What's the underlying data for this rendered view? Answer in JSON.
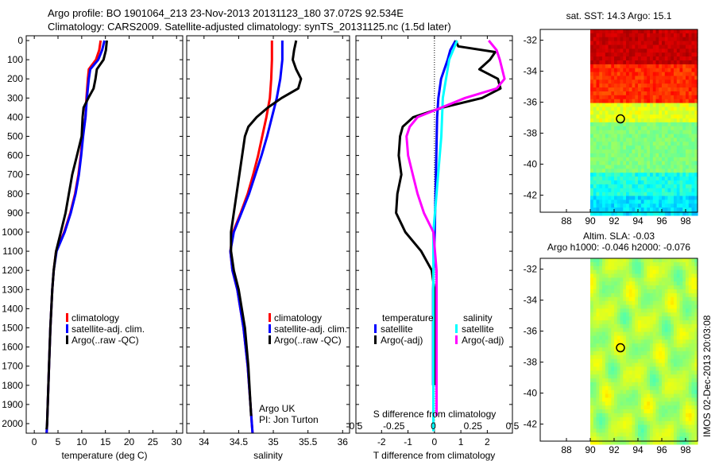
{
  "title": {
    "line1": "Argo profile: BO 1901064_213 23-Nov-2013 20131123_180 37.072S 92.534E",
    "line2": "Climatology: CARS2009. Satellite-adjusted climatology: synTS_20131125.nc (1.5d later)"
  },
  "side_label": "IMOS 02-Dec-2013 20:03:08",
  "colors": {
    "clim": "#ff0000",
    "sat": "#0000ff",
    "argo": "#000000",
    "sat_s": "#00ffff",
    "argo_s": "#ff00ff"
  },
  "chart_data": [
    {
      "type": "line",
      "id": "temp",
      "xlabel": "temperature (deg C)",
      "ylabel": "",
      "xlim": [
        -1.7,
        31.3
      ],
      "ylim": [
        2050,
        -25
      ],
      "xticks": [
        0,
        5,
        10,
        15,
        20,
        25,
        30
      ],
      "yticks": [
        0,
        100,
        200,
        300,
        400,
        500,
        600,
        700,
        800,
        900,
        1000,
        1100,
        1200,
        1300,
        1400,
        1500,
        1600,
        1700,
        1800,
        1900,
        2000
      ],
      "legend": [
        "climatology",
        "satellite-adj. clim.",
        "Argo(..raw -QC)"
      ],
      "series": [
        {
          "name": "climatology",
          "color": "#ff0000",
          "depth": [
            0,
            50,
            100,
            150,
            200,
            300,
            400,
            500,
            600,
            700,
            800,
            900,
            1000,
            1100,
            1200,
            1300,
            1500,
            1700,
            2000,
            2050
          ],
          "values": [
            14,
            13.7,
            13,
            11.5,
            11.3,
            11,
            10.8,
            10.2,
            9.8,
            9.3,
            8.6,
            7.6,
            6.3,
            4.6,
            4.1,
            3.8,
            3.4,
            3.1,
            2.7,
            2.6
          ]
        },
        {
          "name": "satellite-adj. clim.",
          "color": "#0000ff",
          "depth": [
            0,
            50,
            100,
            150,
            200,
            300,
            400,
            500,
            600,
            700,
            800,
            900,
            1000,
            1100,
            1200,
            1300,
            1500,
            1700,
            2000,
            2050
          ],
          "values": [
            14.8,
            14.3,
            13.5,
            11.8,
            11.5,
            11.1,
            10.8,
            10.3,
            9.9,
            9.4,
            8.7,
            7.7,
            6.4,
            4.7,
            4.1,
            3.8,
            3.4,
            3.1,
            2.7,
            2.6
          ]
        },
        {
          "name": "Argo(..raw -QC)",
          "color": "#000000",
          "depth": [
            0,
            50,
            100,
            150,
            200,
            250,
            300,
            350,
            400,
            500,
            600,
            700,
            800,
            900,
            1000,
            1100,
            1200,
            1300,
            1500,
            1700,
            2000,
            2030
          ],
          "values": [
            15.3,
            15.1,
            14.6,
            13.2,
            12.9,
            12.5,
            11.4,
            10.4,
            10.2,
            10,
            9,
            8,
            7.3,
            6.6,
            5.6,
            4.6,
            4.1,
            3.8,
            3.4,
            3.1,
            2.7,
            2.6
          ]
        }
      ]
    },
    {
      "type": "line",
      "id": "sal",
      "xlabel": "salinity",
      "ylabel": "",
      "xlim": [
        33.75,
        36.1
      ],
      "ylim": [
        2050,
        -25
      ],
      "xticks": [
        34,
        34.5,
        35,
        35.5,
        36
      ],
      "legend": [
        "climatology",
        "satellite-adj. clim.",
        "Argo(..raw -QC)"
      ],
      "note": [
        "Argo UK",
        "PI: Jon Turton"
      ],
      "series": [
        {
          "name": "climatology",
          "color": "#ff0000",
          "depth": [
            0,
            100,
            200,
            300,
            400,
            500,
            600,
            700,
            800,
            900,
            1000,
            1100,
            1200,
            1300,
            1500,
            1700,
            2000,
            2050
          ],
          "values": [
            34.98,
            34.98,
            34.97,
            34.95,
            34.9,
            34.84,
            34.78,
            34.71,
            34.63,
            34.53,
            34.42,
            34.38,
            34.41,
            34.48,
            34.57,
            34.63,
            34.69,
            34.7
          ]
        },
        {
          "name": "satellite-adj. clim.",
          "color": "#0000ff",
          "depth": [
            0,
            100,
            200,
            300,
            400,
            500,
            600,
            700,
            800,
            900,
            1000,
            1100,
            1200,
            1300,
            1500,
            1700,
            2000,
            2050
          ],
          "values": [
            35.13,
            35.13,
            35.1,
            35.05,
            34.98,
            34.91,
            34.83,
            34.74,
            34.65,
            34.54,
            34.43,
            34.38,
            34.41,
            34.48,
            34.57,
            34.63,
            34.69,
            34.7
          ]
        },
        {
          "name": "Argo(..raw -QC)",
          "color": "#000000",
          "depth": [
            0,
            50,
            100,
            150,
            200,
            250,
            300,
            350,
            400,
            450,
            500,
            600,
            700,
            800,
            900,
            1000,
            1100,
            1200,
            1300,
            1500,
            1700,
            1960
          ],
          "values": [
            35.33,
            35.3,
            35.28,
            35.33,
            35.4,
            35.36,
            35.12,
            34.92,
            34.76,
            34.64,
            34.59,
            34.55,
            34.51,
            34.47,
            34.43,
            34.39,
            34.39,
            34.43,
            34.5,
            34.59,
            34.64,
            34.68
          ]
        }
      ]
    },
    {
      "type": "line",
      "id": "diff",
      "xlabel": "T difference from climatology",
      "x2label": "S difference from climatology",
      "xlim": [
        -2.97,
        2.95
      ],
      "x2lim": [
        -0.49,
        0.5
      ],
      "ylim": [
        2050,
        -25
      ],
      "xticks": [
        -2,
        -1,
        0,
        1,
        2
      ],
      "x2ticks": [
        -0.5,
        -0.25,
        0,
        0.25,
        0.5
      ],
      "x2ticklabels": [
        "-0.5",
        "-0.25",
        "0",
        "0.25",
        "0.5"
      ],
      "legend_t": {
        "title": "temperature",
        "items": [
          "satellite",
          "Argo(-adj)"
        ]
      },
      "legend_s": {
        "title": "salinity",
        "items": [
          "satellite",
          "Argo(-adj)"
        ]
      },
      "series": [
        {
          "name": "T satellite",
          "axis": "T",
          "color": "#0000ff",
          "depth": [
            0,
            50,
            100,
            200,
            300,
            400,
            600,
            800,
            1000,
            1200,
            1300,
            1500,
            1700,
            1800
          ],
          "values": [
            0.8,
            0.6,
            0.5,
            0.25,
            0.15,
            0.1,
            0.07,
            0.04,
            0.01,
            -0.03,
            -0.05,
            -0.05,
            -0.05,
            -0.05
          ]
        },
        {
          "name": "T Argo(-adj)",
          "axis": "T",
          "color": "#000000",
          "depth": [
            0,
            30,
            60,
            100,
            150,
            200,
            250,
            300,
            350,
            400,
            450,
            500,
            600,
            700,
            800,
            900,
            1000,
            1100,
            1200,
            1300,
            1500,
            1800
          ],
          "values": [
            0.8,
            0.9,
            2.3,
            2.1,
            1.7,
            2.4,
            2.5,
            1.8,
            0.3,
            -0.8,
            -1.2,
            -1.3,
            -1.35,
            -1.25,
            -1.4,
            -1.45,
            -1.1,
            -0.5,
            -0.1,
            0,
            0,
            0
          ]
        },
        {
          "name": "S satellite",
          "axis": "S",
          "color": "#00ffff",
          "depth": [
            0,
            100,
            200,
            300,
            500,
            800,
            1000,
            1500,
            2000,
            2040
          ],
          "values": [
            0.15,
            0.1,
            0.08,
            0.06,
            0.05,
            0.02,
            0,
            0,
            0,
            0
          ]
        },
        {
          "name": "S Argo(-adj)",
          "axis": "S",
          "color": "#ff00ff",
          "depth": [
            0,
            50,
            100,
            200,
            250,
            300,
            350,
            400,
            450,
            500,
            600,
            700,
            800,
            900,
            1000,
            1200,
            1500,
            1960
          ],
          "values": [
            0.35,
            0.4,
            0.42,
            0.45,
            0.4,
            0.2,
            0.05,
            -0.1,
            -0.15,
            -0.17,
            -0.16,
            -0.13,
            -0.1,
            -0.06,
            0,
            0.02,
            0.02,
            0.02
          ]
        }
      ]
    },
    {
      "type": "heatmap",
      "id": "sst",
      "title": "sat. SST: 14.3 Argo: 15.1",
      "xlim": [
        85.8,
        99
      ],
      "ylim": [
        -43.1,
        -31.3
      ],
      "xticks": [
        88,
        90,
        92,
        94,
        96,
        98
      ],
      "yticks": [
        -32,
        -34,
        -36,
        -38,
        -40,
        -42
      ],
      "argo": {
        "lon": 92.534,
        "lat": -37.072
      }
    },
    {
      "type": "heatmap",
      "id": "sla",
      "title1": "Altim. SLA: -0.03",
      "title2": "Argo h1000: -0.046 h2000: -0.076",
      "xlim": [
        85.8,
        99
      ],
      "ylim": [
        -43.1,
        -31.3
      ],
      "xticks": [
        88,
        90,
        92,
        94,
        96,
        98
      ],
      "yticks": [
        -32,
        -34,
        -36,
        -38,
        -40,
        -42
      ],
      "argo": {
        "lon": 92.534,
        "lat": -37.072
      }
    }
  ]
}
